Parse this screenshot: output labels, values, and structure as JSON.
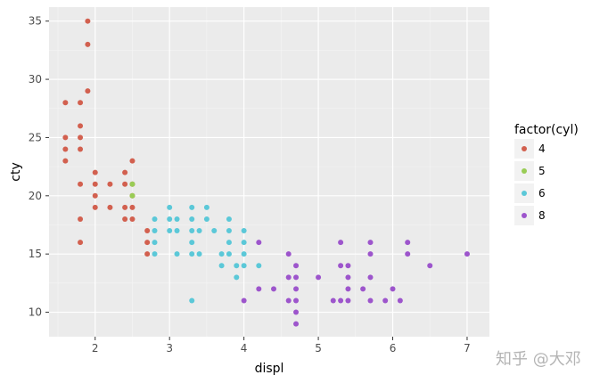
{
  "chart_data": {
    "type": "scatter",
    "xlabel": "displ",
    "ylabel": "cty",
    "xlim": [
      1.38,
      7.3
    ],
    "ylim": [
      7.9,
      36.2
    ],
    "x_ticks": [
      2,
      3,
      4,
      5,
      6,
      7
    ],
    "y_ticks": [
      10,
      15,
      20,
      25,
      30,
      35
    ],
    "grid": true,
    "legend_title": "factor(cyl)",
    "legend_position": "right",
    "series": [
      {
        "name": "4",
        "color": "#d2604f",
        "points": [
          [
            1.6,
            28
          ],
          [
            1.6,
            25
          ],
          [
            1.6,
            24
          ],
          [
            1.6,
            23
          ],
          [
            1.8,
            28
          ],
          [
            1.8,
            26
          ],
          [
            1.8,
            25
          ],
          [
            1.8,
            24
          ],
          [
            1.8,
            21
          ],
          [
            1.8,
            18
          ],
          [
            1.8,
            16
          ],
          [
            1.9,
            35
          ],
          [
            1.9,
            33
          ],
          [
            1.9,
            29
          ],
          [
            2.0,
            22
          ],
          [
            2.0,
            21
          ],
          [
            2.0,
            20
          ],
          [
            2.0,
            19
          ],
          [
            2.2,
            21
          ],
          [
            2.2,
            19
          ],
          [
            2.4,
            22
          ],
          [
            2.4,
            21
          ],
          [
            2.4,
            19
          ],
          [
            2.4,
            18
          ],
          [
            2.5,
            23
          ],
          [
            2.5,
            21
          ],
          [
            2.5,
            20
          ],
          [
            2.5,
            19
          ],
          [
            2.5,
            18
          ],
          [
            2.7,
            17
          ],
          [
            2.7,
            16
          ],
          [
            2.7,
            15
          ]
        ]
      },
      {
        "name": "5",
        "color": "#99cc55",
        "points": [
          [
            2.5,
            21
          ],
          [
            2.5,
            20
          ]
        ]
      },
      {
        "name": "6",
        "color": "#5bc8d8",
        "points": [
          [
            2.8,
            18
          ],
          [
            2.8,
            17
          ],
          [
            2.8,
            16
          ],
          [
            2.8,
            15
          ],
          [
            3.0,
            19
          ],
          [
            3.0,
            18
          ],
          [
            3.0,
            17
          ],
          [
            3.1,
            18
          ],
          [
            3.1,
            17
          ],
          [
            3.1,
            15
          ],
          [
            3.3,
            19
          ],
          [
            3.3,
            18
          ],
          [
            3.3,
            17
          ],
          [
            3.3,
            16
          ],
          [
            3.3,
            15
          ],
          [
            3.3,
            11
          ],
          [
            3.4,
            17
          ],
          [
            3.4,
            15
          ],
          [
            3.5,
            19
          ],
          [
            3.5,
            18
          ],
          [
            3.6,
            17
          ],
          [
            3.7,
            15
          ],
          [
            3.7,
            14
          ],
          [
            3.8,
            18
          ],
          [
            3.8,
            17
          ],
          [
            3.8,
            16
          ],
          [
            3.8,
            15
          ],
          [
            3.9,
            14
          ],
          [
            3.9,
            13
          ],
          [
            4.0,
            17
          ],
          [
            4.0,
            16
          ],
          [
            4.0,
            15
          ],
          [
            4.0,
            14
          ],
          [
            4.2,
            14
          ]
        ]
      },
      {
        "name": "8",
        "color": "#9d55cc",
        "points": [
          [
            4.0,
            11
          ],
          [
            4.2,
            16
          ],
          [
            4.2,
            12
          ],
          [
            4.4,
            12
          ],
          [
            4.6,
            15
          ],
          [
            4.6,
            13
          ],
          [
            4.6,
            11
          ],
          [
            4.7,
            14
          ],
          [
            4.7,
            13
          ],
          [
            4.7,
            12
          ],
          [
            4.7,
            11
          ],
          [
            4.7,
            10
          ],
          [
            4.7,
            9
          ],
          [
            5.0,
            13
          ],
          [
            5.2,
            11
          ],
          [
            5.3,
            16
          ],
          [
            5.3,
            14
          ],
          [
            5.3,
            11
          ],
          [
            5.4,
            14
          ],
          [
            5.4,
            13
          ],
          [
            5.4,
            12
          ],
          [
            5.4,
            11
          ],
          [
            5.6,
            12
          ],
          [
            5.7,
            16
          ],
          [
            5.7,
            15
          ],
          [
            5.7,
            13
          ],
          [
            5.7,
            11
          ],
          [
            5.9,
            11
          ],
          [
            6.0,
            12
          ],
          [
            6.1,
            11
          ],
          [
            6.2,
            16
          ],
          [
            6.2,
            15
          ],
          [
            6.5,
            14
          ],
          [
            7.0,
            15
          ]
        ]
      }
    ]
  },
  "watermark": "知乎 @大邓"
}
